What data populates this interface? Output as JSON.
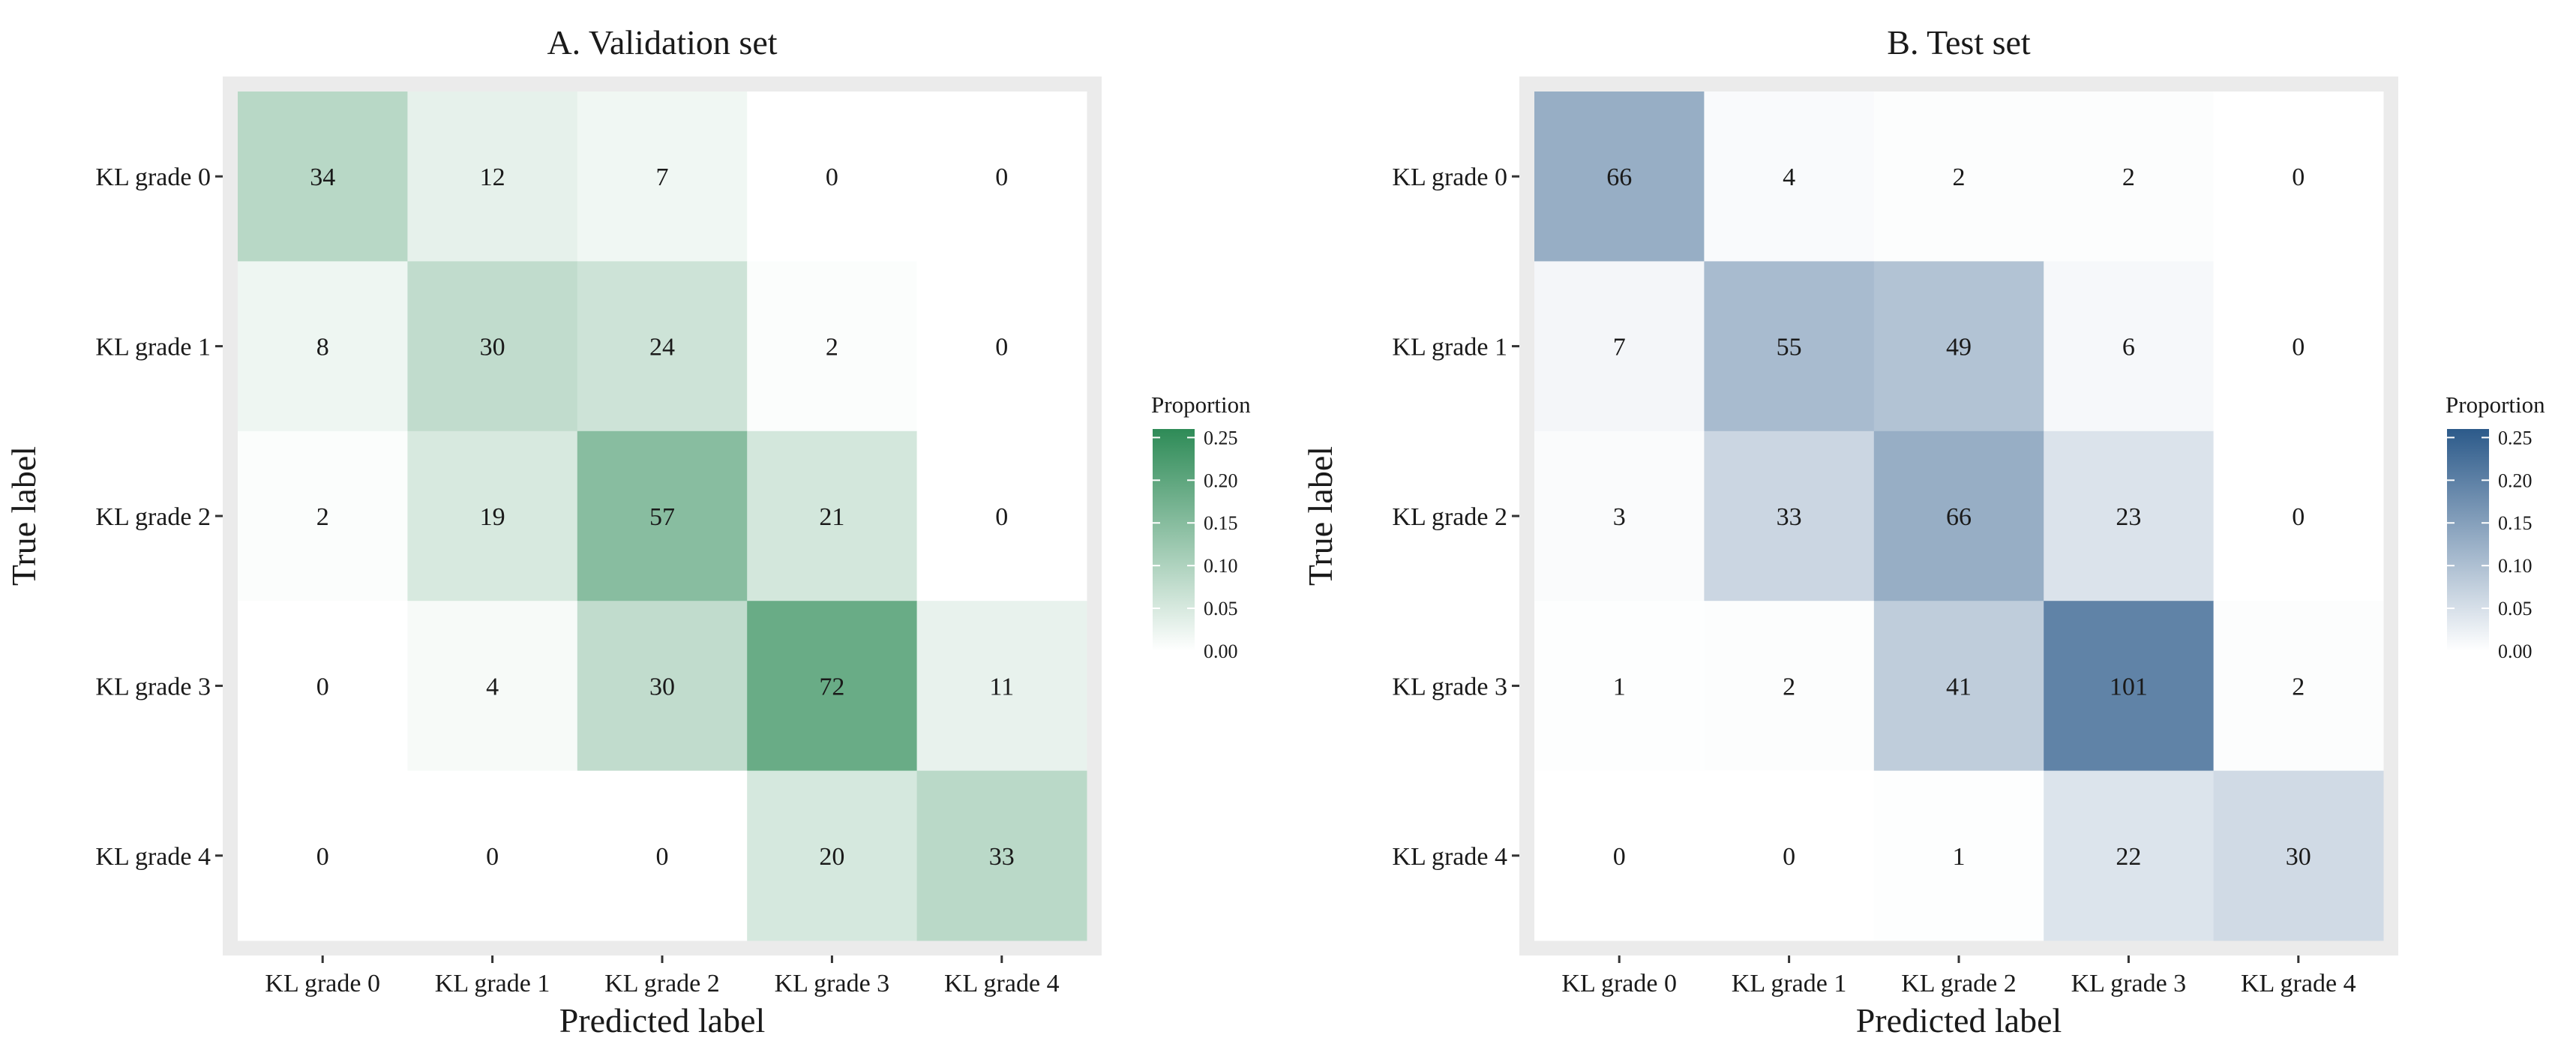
{
  "chart_data": [
    {
      "type": "heatmap",
      "title": "A. Validation set",
      "xlabel": "Predicted label",
      "ylabel": "True label",
      "x_categories": [
        "KL grade 0",
        "KL grade 1",
        "KL grade 2",
        "KL grade 3",
        "KL grade 4"
      ],
      "y_categories": [
        "KL grade 0",
        "KL grade 1",
        "KL grade 2",
        "KL grade 3",
        "KL grade 4"
      ],
      "values": [
        [
          34,
          12,
          7,
          0,
          0
        ],
        [
          8,
          30,
          24,
          2,
          0
        ],
        [
          2,
          19,
          57,
          21,
          0
        ],
        [
          0,
          4,
          30,
          72,
          11
        ],
        [
          0,
          0,
          0,
          20,
          33
        ]
      ],
      "legend": {
        "title": "Proportion",
        "ticks": [
          "0.25",
          "0.20",
          "0.15",
          "0.10",
          "0.05",
          "0.00"
        ],
        "tick_values": [
          0.25,
          0.2,
          0.15,
          0.1,
          0.05,
          0.0
        ],
        "range": [
          0,
          0.26
        ],
        "placement": "right"
      },
      "color_high": "#2e8b57",
      "color_low": "#ffffff",
      "panel_background": "#ebebeb"
    },
    {
      "type": "heatmap",
      "title": "B. Test set",
      "xlabel": "Predicted label",
      "ylabel": "True label",
      "x_categories": [
        "KL grade 0",
        "KL grade 1",
        "KL grade 2",
        "KL grade 3",
        "KL grade 4"
      ],
      "y_categories": [
        "KL grade 0",
        "KL grade 1",
        "KL grade 2",
        "KL grade 3",
        "KL grade 4"
      ],
      "values": [
        [
          66,
          4,
          2,
          2,
          0
        ],
        [
          7,
          55,
          49,
          6,
          0
        ],
        [
          3,
          33,
          66,
          23,
          0
        ],
        [
          1,
          2,
          41,
          101,
          2
        ],
        [
          0,
          0,
          1,
          22,
          30
        ]
      ],
      "legend": {
        "title": "Proportion",
        "ticks": [
          "0.25",
          "0.20",
          "0.15",
          "0.10",
          "0.05",
          "0.00"
        ],
        "tick_values": [
          0.25,
          0.2,
          0.15,
          0.1,
          0.05,
          0.0
        ],
        "range": [
          0,
          0.26
        ],
        "placement": "right"
      },
      "color_high": "#2c5a8a",
      "color_low": "#ffffff",
      "panel_background": "#ebebeb"
    }
  ]
}
